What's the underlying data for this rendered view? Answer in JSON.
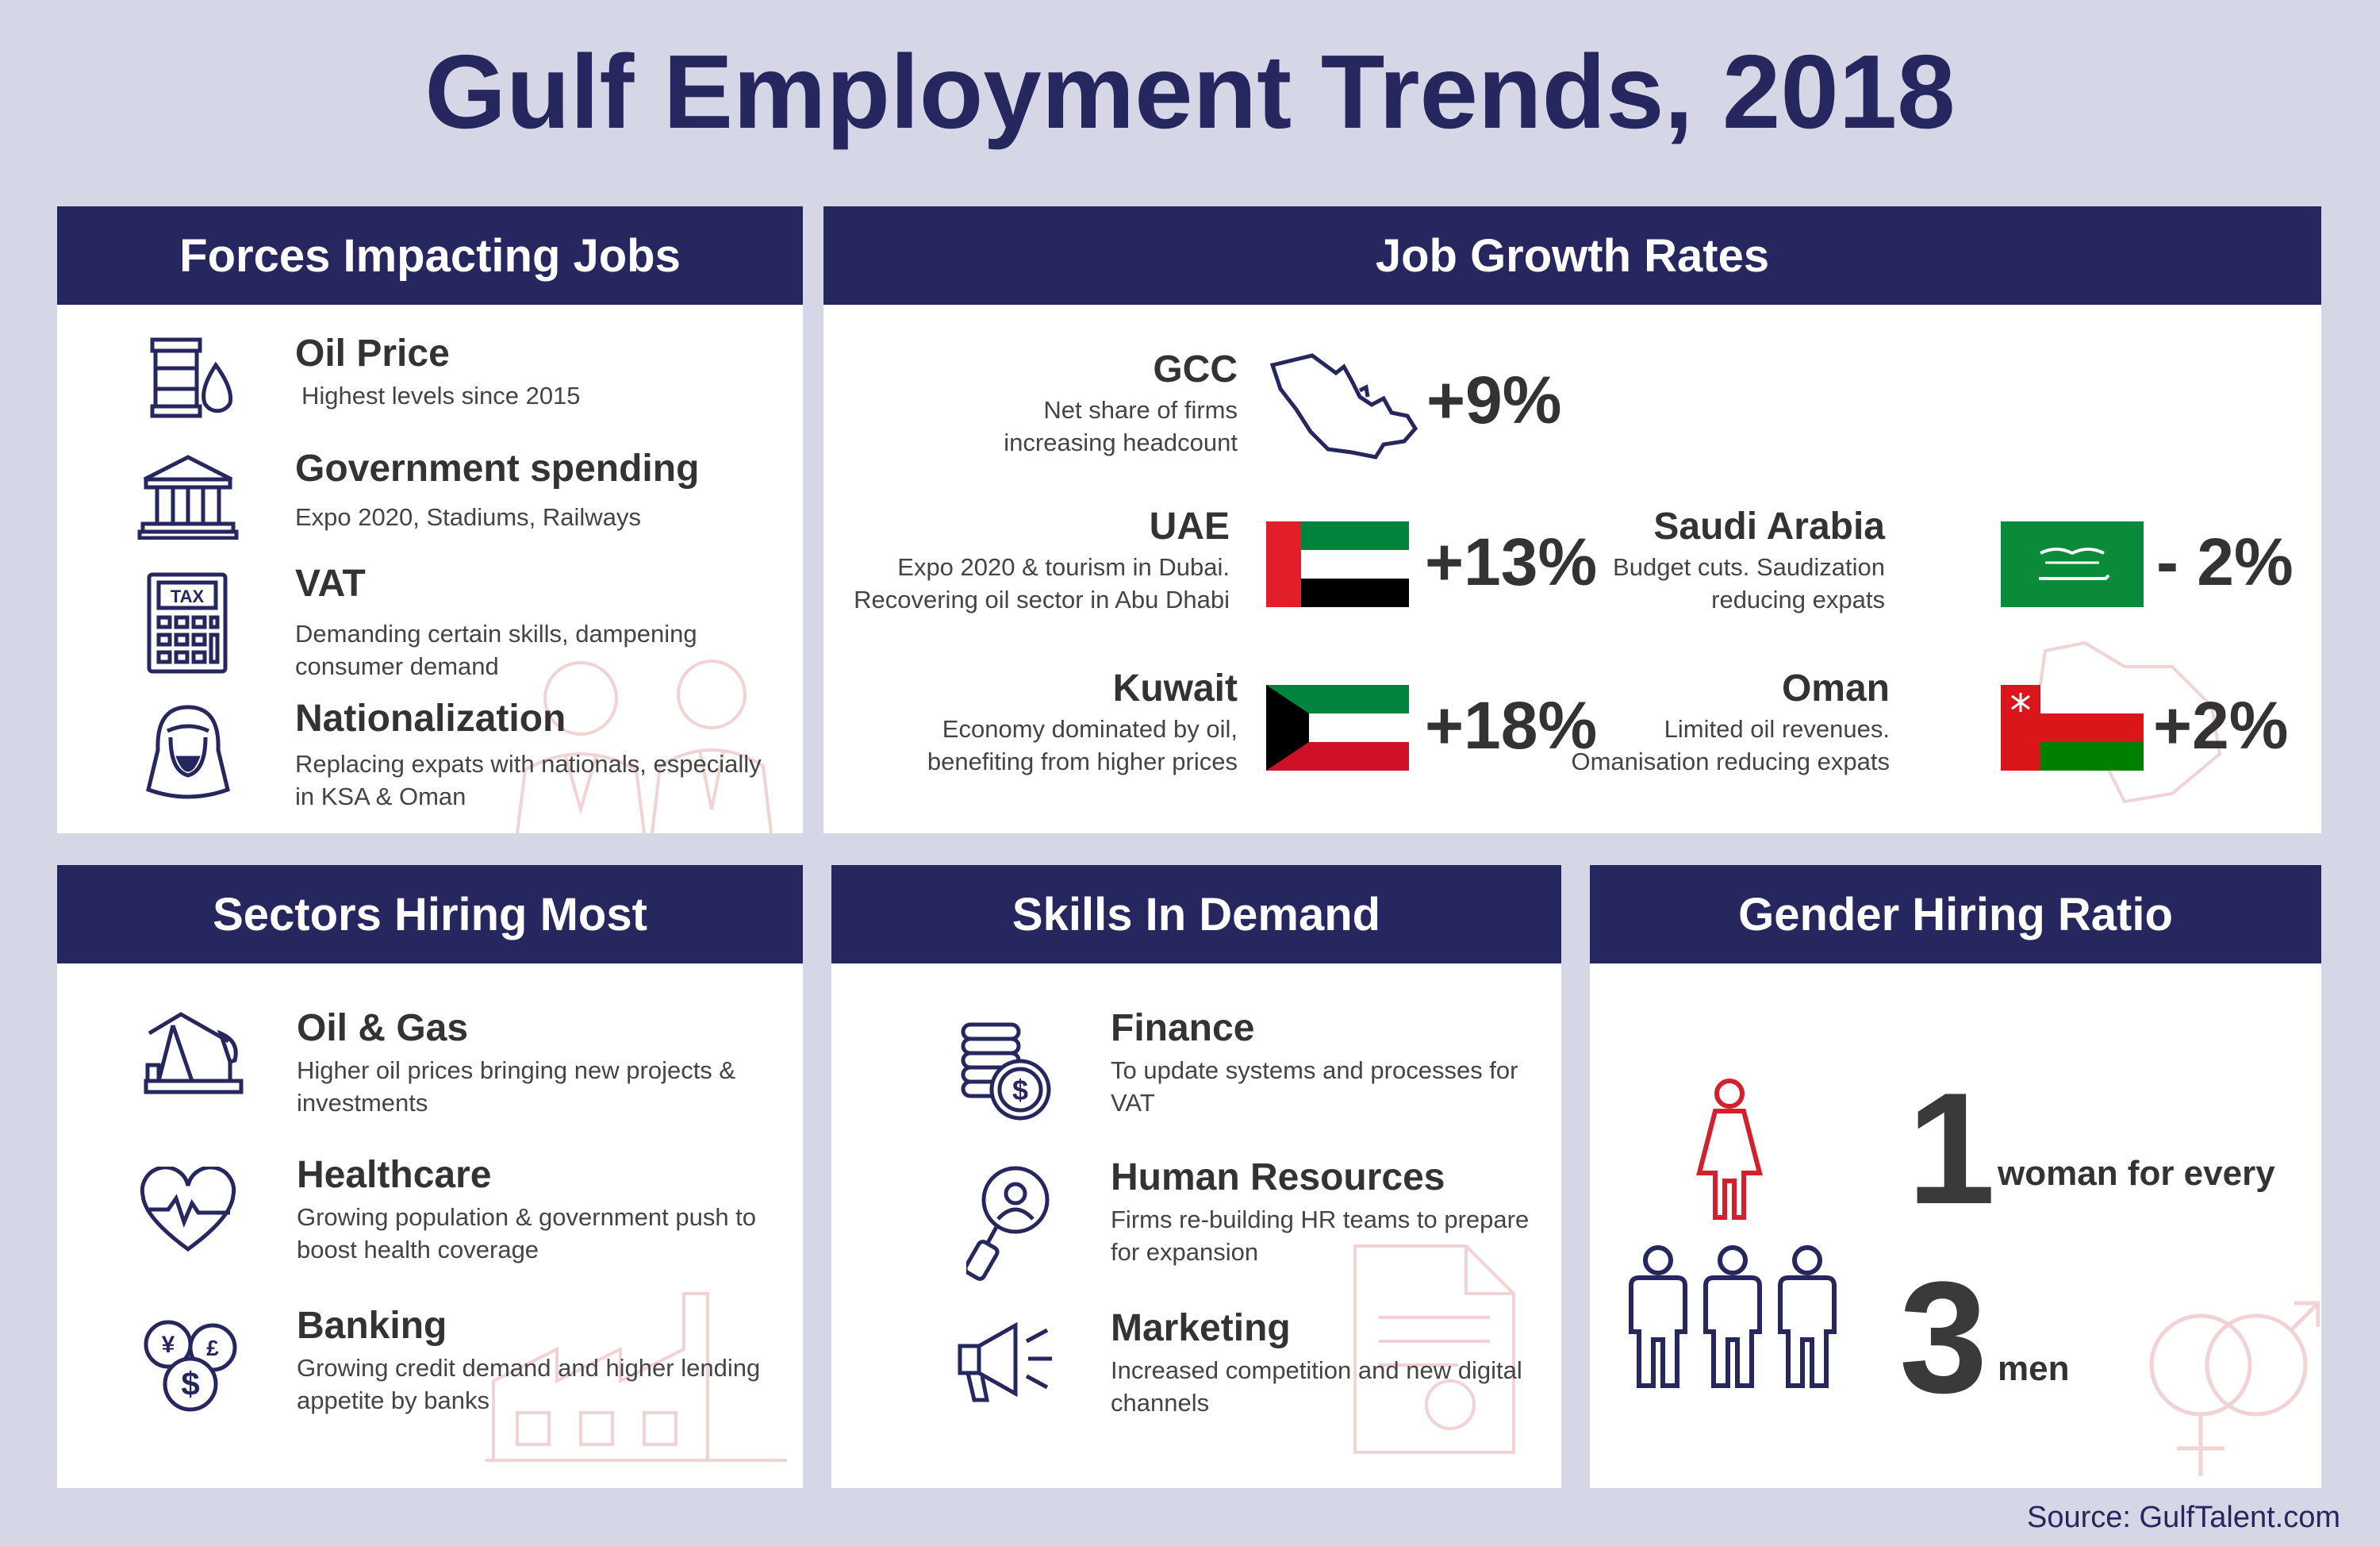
{
  "title": "Gulf Employment Trends, 2018",
  "colors": {
    "navy": "#26275e",
    "accent_red": "#d4202c",
    "text": "#333333"
  },
  "forces": {
    "header": "Forces Impacting Jobs",
    "items": [
      {
        "icon": "oil-barrel-icon",
        "title": "Oil Price",
        "desc": "Highest levels since 2015"
      },
      {
        "icon": "government-building-icon",
        "title": "Government spending",
        "desc": "Expo 2020, Stadiums, Railways"
      },
      {
        "icon": "tax-calculator-icon",
        "title": "VAT",
        "desc": "Demanding certain skills, dampening consumer demand"
      },
      {
        "icon": "arab-man-icon",
        "title": "Nationalization",
        "desc": "Replacing expats with nationals, especially in KSA & Oman"
      }
    ]
  },
  "growth": {
    "header": "Job Growth Rates",
    "gcc": {
      "name": "GCC",
      "desc": "Net share of firms increasing headcount",
      "value": "+9%"
    },
    "uae": {
      "name": "UAE",
      "desc": "Expo 2020 & tourism in Dubai. Recovering oil sector in Abu Dhabi",
      "value": "+13%"
    },
    "saudi": {
      "name": "Saudi Arabia",
      "desc": "Budget cuts. Saudization reducing expats",
      "value": "- 2%"
    },
    "kuwait": {
      "name": "Kuwait",
      "desc": "Economy dominated by oil, benefiting from higher prices",
      "value": "+18%"
    },
    "oman": {
      "name": "Oman",
      "desc": "Limited oil revenues. Omanisation reducing expats",
      "value": "+2%"
    }
  },
  "sectors": {
    "header": "Sectors Hiring Most",
    "items": [
      {
        "icon": "oil-pump-icon",
        "title": "Oil & Gas",
        "desc": "Higher oil prices bringing new projects & investments"
      },
      {
        "icon": "heart-pulse-icon",
        "title": "Healthcare",
        "desc": "Growing population & government push to boost health coverage"
      },
      {
        "icon": "currency-coins-icon",
        "title": "Banking",
        "desc": "Growing credit demand and higher lending appetite by banks"
      }
    ]
  },
  "skills": {
    "header": "Skills In Demand",
    "items": [
      {
        "icon": "coin-stack-icon",
        "title": "Finance",
        "desc": "To update systems and processes for VAT"
      },
      {
        "icon": "person-search-icon",
        "title": "Human Resources",
        "desc": "Firms re-building HR teams to prepare for expansion"
      },
      {
        "icon": "megaphone-icon",
        "title": "Marketing",
        "desc": "Increased competition and new digital channels"
      }
    ]
  },
  "gender": {
    "header": "Gender Hiring Ratio",
    "women_count": "1",
    "women_label": "woman for every",
    "men_count": "3",
    "men_label": "men"
  },
  "source": "Source: GulfTalent.com"
}
